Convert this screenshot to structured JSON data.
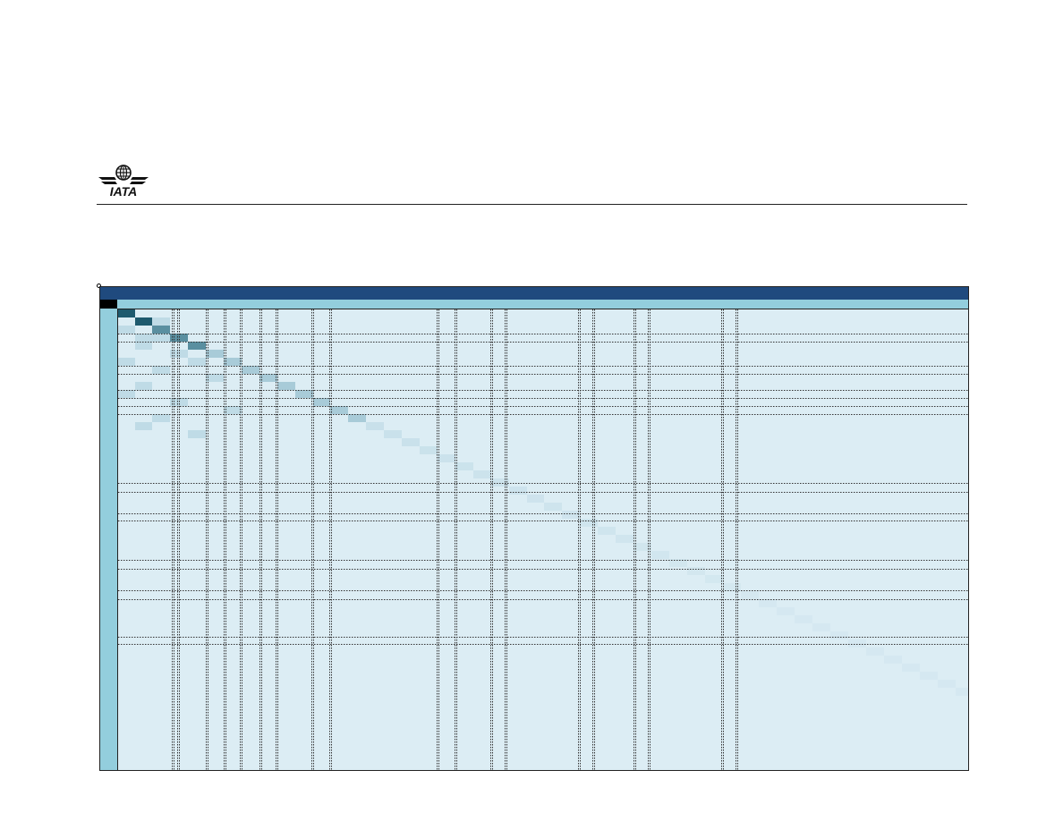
{
  "logo": {
    "text": "IATA",
    "icon": "globe-wings-icon"
  },
  "matrix": {
    "header_color": "#1f4a7e",
    "subheader_color": "#93cedd",
    "cell_base_color": "#dcedf4",
    "diagonal_colors": [
      "#1e5a6e",
      "#5a8fa0",
      "#a8cbd8",
      "#c8e0ea"
    ]
  }
}
